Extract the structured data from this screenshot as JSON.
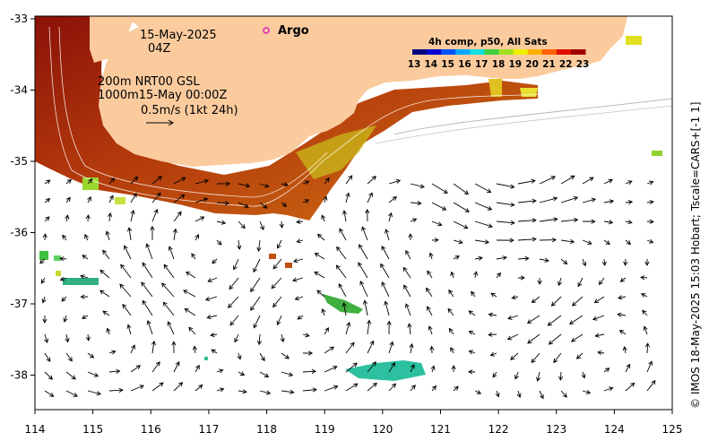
{
  "map": {
    "date": "15-May-2025",
    "time": "04Z",
    "contours": "200m  NRT00 GSL",
    "contours2": "1000m15-May 00:00Z",
    "scale": "0.5m/s (1kt 24h)",
    "argo_label": "Argo",
    "colorbar_title": "4h comp, p50, All Sats",
    "colorbar_ticks": [
      "13",
      "14",
      "15",
      "16",
      "17",
      "18",
      "19",
      "20",
      "21",
      "22",
      "23"
    ],
    "side_label": "© IMOS 18-May-2025 15:03 Hobart; Tscale=CARS+[-1 1]",
    "x_ticks": [
      "114",
      "115",
      "116",
      "117",
      "118",
      "119",
      "120",
      "121",
      "122",
      "123",
      "124",
      "125"
    ],
    "y_ticks": [
      "-33",
      "-34",
      "-35",
      "-36",
      "-37",
      "-38"
    ],
    "colors": {
      "land": "#fbcb9e",
      "background": "#ffffff"
    }
  }
}
